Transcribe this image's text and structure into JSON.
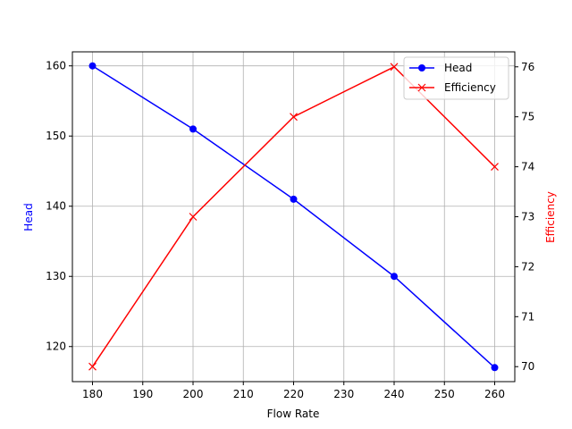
{
  "chart_data": {
    "type": "line",
    "title": "",
    "xlabel": "Flow Rate",
    "x": [
      180,
      200,
      220,
      240,
      260
    ],
    "xlim": [
      176,
      264
    ],
    "xticks": [
      180,
      190,
      200,
      210,
      220,
      230,
      240,
      250,
      260
    ],
    "grid": true,
    "series": [
      {
        "name": "Head",
        "axis": "left",
        "ylabel": "Head",
        "color": "#0000ff",
        "marker": "o",
        "values": [
          160,
          151,
          141,
          130,
          117
        ],
        "ylim": [
          115,
          162
        ],
        "yticks": [
          120,
          130,
          140,
          150,
          160
        ]
      },
      {
        "name": "Efficiency",
        "axis": "right",
        "ylabel": "Efficiency",
        "color": "#ff0000",
        "marker": "x",
        "values": [
          70,
          73,
          75,
          76,
          74
        ],
        "ylim": [
          69.7,
          76.3
        ],
        "yticks": [
          70,
          71,
          72,
          73,
          74,
          75,
          76
        ]
      }
    ],
    "legend": {
      "position": "upper right",
      "entries": [
        "Head",
        "Efficiency"
      ]
    }
  }
}
